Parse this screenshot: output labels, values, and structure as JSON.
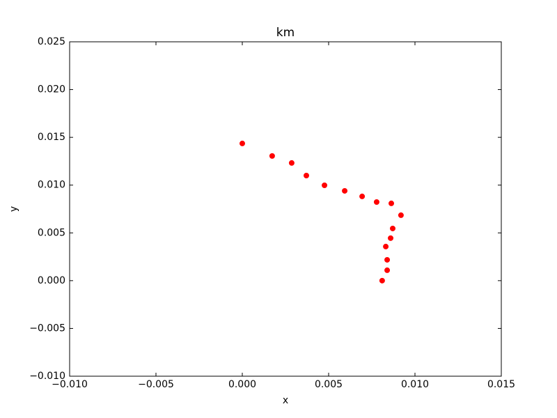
{
  "chart_data": {
    "type": "scatter",
    "title": "km",
    "x_label": "x",
    "y_label": "y",
    "series": [
      {
        "color": "#ff0000",
        "x": [
          0.0,
          0.00173,
          0.00286,
          0.00371,
          0.00476,
          0.00593,
          0.00694,
          0.00778,
          0.00863,
          0.00919,
          0.00871,
          0.00859,
          0.00831,
          0.00839,
          0.00839,
          0.0081
        ],
        "values": [
          0.01436,
          0.01305,
          0.01232,
          0.011,
          0.00998,
          0.0094,
          0.00882,
          0.00823,
          0.00809,
          0.00685,
          0.00546,
          0.00445,
          0.00357,
          0.00218,
          0.00109,
          0.0
        ]
      }
    ],
    "xlim": [
      -0.01,
      0.015
    ],
    "ylim": [
      -0.01,
      0.025
    ],
    "xticks": [
      {
        "value": -0.01,
        "label": "−0.010"
      },
      {
        "value": -0.005,
        "label": "−0.005"
      },
      {
        "value": 0,
        "label": "0.000"
      },
      0.005,
      {
        "value": 0.01,
        "label": "0.010"
      },
      0.015
    ],
    "yticks": [
      {
        "value": -0.01,
        "label": "−0.010"
      },
      {
        "value": -0.005,
        "label": "−0.005"
      },
      {
        "value": 0,
        "label": "0.000"
      },
      0.005,
      {
        "value": 0.01,
        "label": "0.010"
      },
      0.015,
      {
        "value": 0.02,
        "label": "0.020"
      },
      0.025
    ],
    "grid": false
  }
}
